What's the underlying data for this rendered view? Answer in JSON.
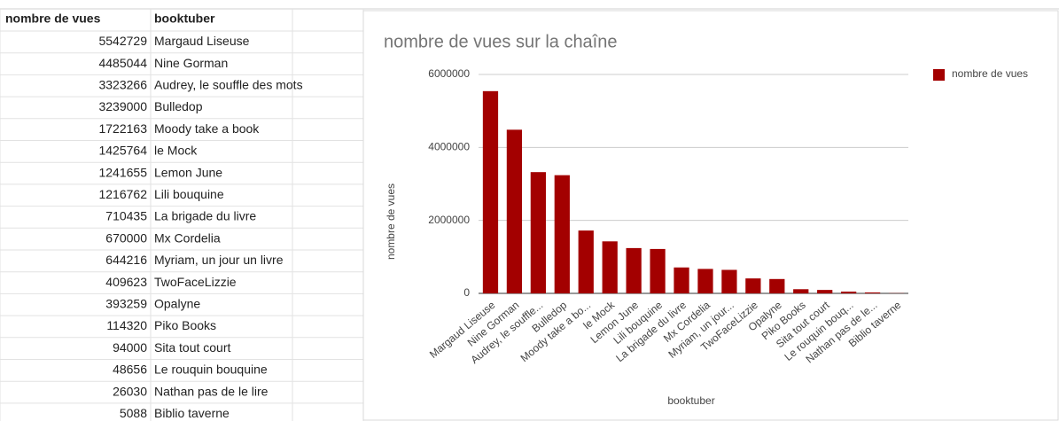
{
  "table": {
    "header": [
      "nombre de vues",
      "booktuber"
    ],
    "rows": [
      [
        5542729,
        "Margaud Liseuse"
      ],
      [
        4485044,
        "Nine Gorman"
      ],
      [
        3323266,
        "Audrey, le souffle des mots"
      ],
      [
        3239000,
        "Bulledop"
      ],
      [
        1722163,
        "Moody take a book"
      ],
      [
        1425764,
        "le Mock"
      ],
      [
        1241655,
        "Lemon June"
      ],
      [
        1216762,
        "Lili bouquine"
      ],
      [
        710435,
        "La brigade du livre"
      ],
      [
        670000,
        "Mx Cordelia"
      ],
      [
        644216,
        "Myriam, un jour un livre"
      ],
      [
        409623,
        "TwoFaceLizzie"
      ],
      [
        393259,
        "Opalyne"
      ],
      [
        114320,
        "Piko Books"
      ],
      [
        94000,
        "Sita tout court"
      ],
      [
        48656,
        "Le rouquin bouquine"
      ],
      [
        26030,
        "Nathan pas de le lire"
      ],
      [
        5088,
        "Biblio taverne"
      ]
    ]
  },
  "chart_data": {
    "type": "bar",
    "title": "nombre de vues sur la chaîne",
    "x_label": "booktuber",
    "y_label": "nombre de vues",
    "categories": [
      "Margaud Liseuse",
      "Nine Gorman",
      "Audrey, le souffle...",
      "Bulledop",
      "Moody take a bo...",
      "le Mock",
      "Lemon June",
      "Lili bouquine",
      "La brigade du livre",
      "Mx Cordelia",
      "Myriam, un jour...",
      "TwoFaceLizzie",
      "Opalyne",
      "Piko Books",
      "Sita tout court",
      "Le rouquin bouq...",
      "Nathan pas de le...",
      "Biblio taverne"
    ],
    "series": [
      {
        "name": "nombre de vues",
        "color": "#a30000",
        "values": [
          5542729,
          4485044,
          3323266,
          3239000,
          1722163,
          1425764,
          1241655,
          1216762,
          710435,
          670000,
          644216,
          409623,
          393259,
          114320,
          94000,
          48656,
          26030,
          5088
        ]
      }
    ],
    "ylim": [
      0,
      6000000
    ],
    "yticks": [
      0,
      2000000,
      4000000,
      6000000
    ],
    "grid": true,
    "legend": "right"
  }
}
